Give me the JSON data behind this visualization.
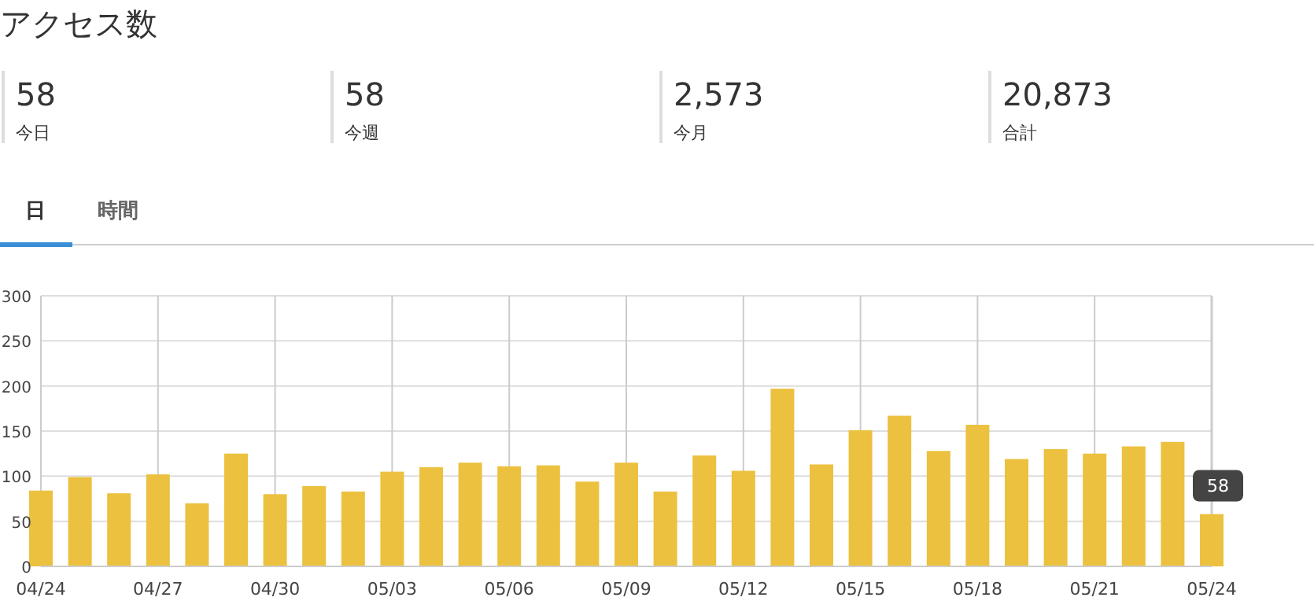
{
  "chart_data": [
    {
      "type": "other",
      "title": "アクセス数",
      "annotations": [
        "58",
        "今日",
        "58",
        "今週",
        "2,573",
        "今月",
        "20,873",
        "合計",
        "日",
        "時間"
      ]
    },
    {
      "type": "bar",
      "categories": [
        "04/24",
        null,
        null,
        "04/27",
        null,
        null,
        "04/30",
        null,
        null,
        "05/03",
        null,
        null,
        "05/06",
        null,
        null,
        "05/09",
        null,
        null,
        "05/12",
        null,
        null,
        "05/15",
        null,
        null,
        "05/18",
        null,
        null,
        "05/21",
        null,
        null,
        "05/24"
      ],
      "values": [
        84,
        99,
        81,
        102,
        70,
        125,
        80,
        89,
        83,
        105,
        110,
        115,
        111,
        112,
        94,
        115,
        83,
        123,
        106,
        197,
        113,
        151,
        167,
        128,
        157,
        119,
        130,
        125,
        133,
        138,
        58
      ],
      "value_labels": [
        null,
        null,
        null,
        null,
        null,
        null,
        null,
        null,
        null,
        null,
        null,
        null,
        null,
        null,
        null,
        null,
        null,
        null,
        null,
        null,
        null,
        null,
        null,
        null,
        null,
        null,
        null,
        null,
        null,
        null,
        "58"
      ],
      "color": "#ecc13f",
      "ylim": [
        0,
        300
      ],
      "yticks": [
        0,
        50,
        100,
        150,
        200,
        250,
        300
      ],
      "grid": true
    }
  ]
}
